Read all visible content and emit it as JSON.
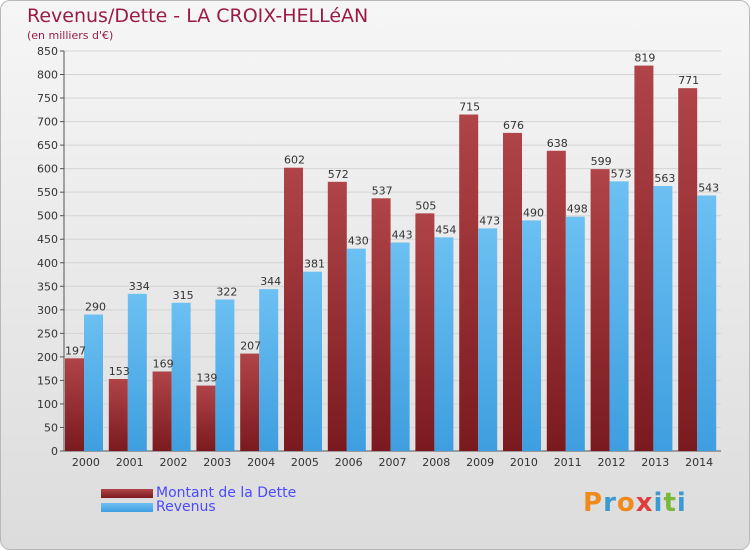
{
  "header": {
    "title": "Revenus/Dette - LA CROIX-HELLéAN",
    "subtitle": "(en milliers d'€)"
  },
  "colors": {
    "dette": "#7a1a1f",
    "dette_light": "#b04448",
    "revenus": "#3e9edf",
    "revenus_light": "#6cc0f2",
    "grid": "#d4d4d4",
    "axis_text": "#333333"
  },
  "legend": {
    "items": [
      {
        "label": "Montant de la Dette",
        "color": "#7a1a1f"
      },
      {
        "label": "Revenus",
        "color": "#3e9edf"
      }
    ]
  },
  "logo": {
    "letters": [
      "P",
      "r",
      "o",
      "x",
      "i",
      "t",
      "i"
    ],
    "colors": [
      "#f08a1c",
      "#3d9ad1",
      "#f08a1c",
      "#e03c3c",
      "#3d9ad1",
      "#7ab83a",
      "#3d9ad1"
    ]
  },
  "chart_data": {
    "type": "bar",
    "title": "Revenus/Dette - LA CROIX-HELLéAN",
    "subtitle": "(en milliers d'€)",
    "xlabel": "",
    "ylabel": "",
    "ylim": [
      0,
      850
    ],
    "ytick_step": 50,
    "grid": true,
    "legend_position": "bottom-left",
    "categories": [
      "2000",
      "2001",
      "2002",
      "2003",
      "2004",
      "2005",
      "2006",
      "2007",
      "2008",
      "2009",
      "2010",
      "2011",
      "2012",
      "2013",
      "2014"
    ],
    "series": [
      {
        "name": "Montant de la Dette",
        "values": [
          197,
          153,
          169,
          139,
          207,
          602,
          572,
          537,
          505,
          715,
          676,
          638,
          599,
          819,
          771
        ]
      },
      {
        "name": "Revenus",
        "values": [
          290,
          334,
          315,
          322,
          344,
          381,
          430,
          443,
          454,
          473,
          490,
          498,
          573,
          563,
          543
        ]
      }
    ]
  }
}
